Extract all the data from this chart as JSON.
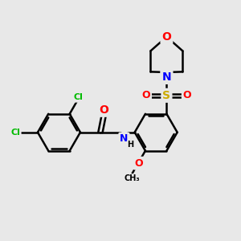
{
  "background_color": "#e8e8e8",
  "atom_colors": {
    "Cl": "#00bb00",
    "O": "#ff0000",
    "N": "#0000ff",
    "S": "#ccaa00",
    "C": "#000000",
    "H": "#000000"
  },
  "bond_color": "#000000",
  "bond_width": 1.8,
  "figsize": [
    3.0,
    3.0
  ],
  "dpi": 100
}
